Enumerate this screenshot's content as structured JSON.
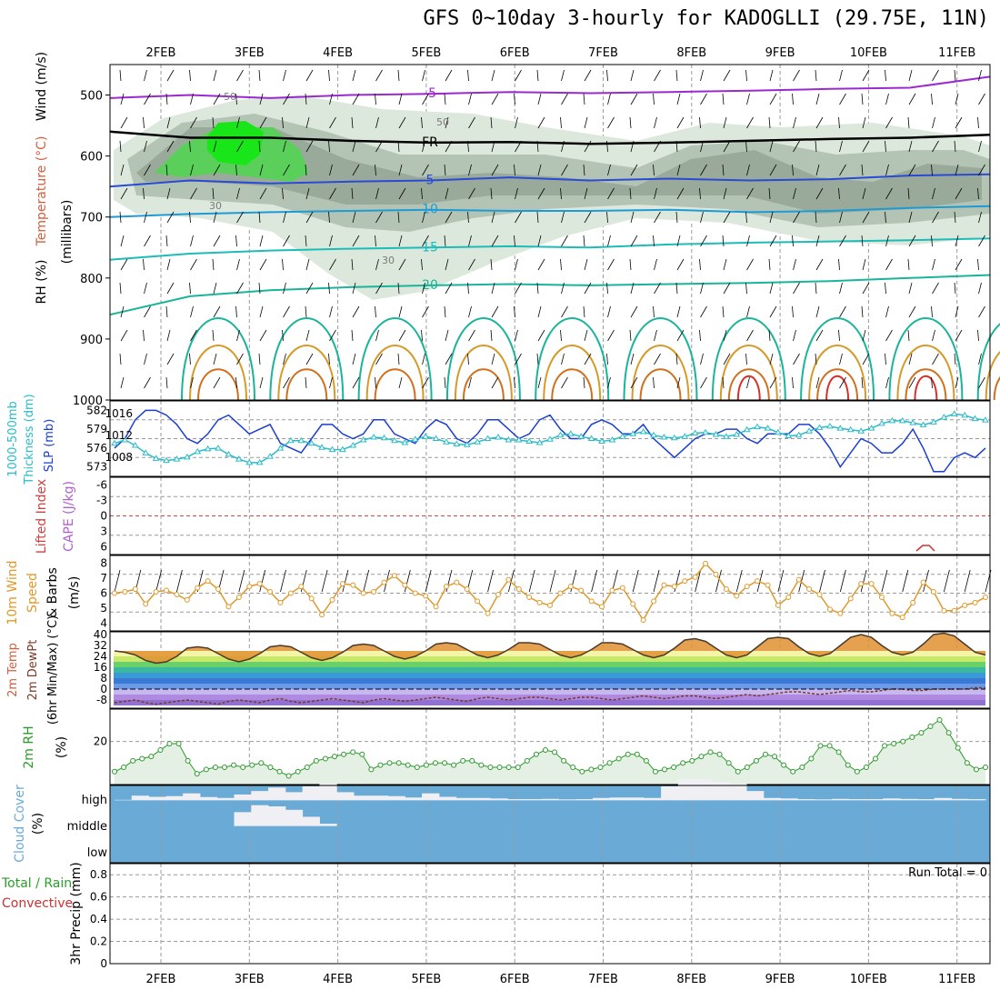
{
  "title": "GFS 0~10day 3-hourly for KADOGLLI (29.75E, 11N)",
  "dates": [
    "2FEB",
    "3FEB",
    "4FEB",
    "5FEB",
    "6FEB",
    "7FEB",
    "8FEB",
    "9FEB",
    "10FEB",
    "11FEB"
  ],
  "run_total": "Run Total = 0",
  "colors": {
    "rh_light": "#dde8dd",
    "rh_mid": "#b4c4b4",
    "rh_dark": "#9aaa9a",
    "rh_green": "#5ad05a",
    "rh_bright": "#19e619",
    "temp_minus5": "#9a2ad0",
    "temp_fr": "#000000",
    "temp_5": "#2a4ad6",
    "temp_10": "#1e9ad6",
    "temp_15": "#1cbcb8",
    "temp_20": "#1ab49a",
    "temp_25": "#d69a2a",
    "temp_30": "#d0701e",
    "temp_35": "#d8302a",
    "slp": "#1c3fd0",
    "thickness": "#2abcc8",
    "wind10m": "#e0982a",
    "rh2m": "#2a9a2a",
    "cloud_bg": "#6aaad6",
    "cloud": "#f0f0f4"
  },
  "chart_data": [
    {
      "panel": "upper-air",
      "type": "heatmap",
      "ylabel_parts": [
        "RH (%)",
        "Temperature (°C)",
        "Wind (m/s)"
      ],
      "y_axis_label": "(millibars)",
      "y_ticks": [
        500,
        600,
        700,
        800,
        900,
        1000
      ],
      "ylim": [
        1000,
        450
      ],
      "contour_labels": [
        "-5",
        "FR",
        "5",
        "10",
        "15",
        "20",
        "50",
        "30"
      ],
      "temperature_levels": [
        {
          "label": "-5",
          "pressure_mb": [
            505,
            500,
            505,
            500,
            498,
            495,
            497,
            495,
            493,
            490,
            488,
            470
          ]
        },
        {
          "label": "FR",
          "pressure_mb": [
            560,
            570,
            570,
            575,
            578,
            577,
            580,
            578,
            575,
            572,
            570,
            565
          ]
        },
        {
          "label": "5",
          "pressure_mb": [
            650,
            640,
            645,
            642,
            640,
            635,
            640,
            637,
            640,
            638,
            632,
            630
          ]
        },
        {
          "label": "10",
          "pressure_mb": [
            700,
            695,
            692,
            690,
            688,
            690,
            690,
            688,
            692,
            690,
            685,
            682
          ]
        },
        {
          "label": "15",
          "pressure_mb": [
            770,
            760,
            755,
            752,
            750,
            748,
            750,
            745,
            742,
            740,
            738,
            735
          ]
        },
        {
          "label": "20",
          "pressure_mb": [
            860,
            830,
            820,
            815,
            812,
            810,
            812,
            810,
            808,
            805,
            800,
            795
          ]
        }
      ]
    },
    {
      "panel": "slp-thickness",
      "type": "line",
      "ylabel_parts": [
        "1000-500mb",
        "Thickness (dm)",
        "SLP (mb)"
      ],
      "left_ticks": [
        "582",
        "579",
        "576",
        "573"
      ],
      "right_ticks": [
        "1016",
        "1012",
        "1008"
      ],
      "series": [
        {
          "name": "SLP (mb)",
          "values": [
            1010,
            1012,
            1016,
            1018,
            1018,
            1017,
            1015,
            1012,
            1011,
            1013,
            1016,
            1017,
            1015,
            1013,
            1014,
            1015,
            1011,
            1010,
            1009,
            1012,
            1015,
            1015,
            1013,
            1012,
            1013,
            1016,
            1016,
            1013,
            1012,
            1011,
            1014,
            1016,
            1015,
            1012,
            1011,
            1013,
            1016,
            1016,
            1014,
            1012,
            1013,
            1016,
            1017,
            1014,
            1012,
            1012,
            1015,
            1016,
            1015,
            1013,
            1013,
            1015,
            1012,
            1010,
            1008,
            1010,
            1012,
            1013,
            1013,
            1014,
            1014,
            1012,
            1011,
            1013,
            1013,
            1013,
            1015,
            1015,
            1013,
            1010,
            1006,
            1009,
            1012,
            1011,
            1009,
            1009,
            1011,
            1014,
            1010,
            1005,
            1005,
            1008,
            1009,
            1008,
            1010
          ]
        },
        {
          "name": "Thickness (dm)",
          "values": [
            576.8,
            577.3,
            576.5,
            575.4,
            574.6,
            574.3,
            574.5,
            574.8,
            575.6,
            576.0,
            576.1,
            575.2,
            574.5,
            574.0,
            574.0,
            574.9,
            576.1,
            577.2,
            577.2,
            576.8,
            576.2,
            575.9,
            575.9,
            576.5,
            577.3,
            577.7,
            577.6,
            577.2,
            576.9,
            577.4,
            577.8,
            577.5,
            577.0,
            576.7,
            576.6,
            577.0,
            577.5,
            577.7,
            577.3,
            577.3,
            577.1,
            576.9,
            577.4,
            578.0,
            578.2,
            577.8,
            577.5,
            577.1,
            577.3,
            577.8,
            578.2,
            578.5,
            578.0,
            577.7,
            577.6,
            577.8,
            578.3,
            578.4,
            578.1,
            577.8,
            578.1,
            578.8,
            579.2,
            579.0,
            578.4,
            577.9,
            578.0,
            578.6,
            579.1,
            579.3,
            579.0,
            578.8,
            578.6,
            579.0,
            579.7,
            580.1,
            580.1,
            579.8,
            579.5,
            579.9,
            580.6,
            581.1,
            580.9,
            580.4,
            580.2
          ]
        }
      ]
    },
    {
      "panel": "cape-li",
      "type": "line",
      "ylabel_parts": [
        "Lifted Index",
        "CAPE (J/kg)"
      ],
      "y_ticks": [
        "-6",
        "-3",
        "0",
        "3",
        "6"
      ],
      "series": [
        {
          "name": "CAPE (J/kg)",
          "values": [
            0,
            0,
            0,
            0,
            0,
            0,
            0,
            0,
            0,
            0,
            0,
            0,
            0,
            0,
            0,
            0,
            0,
            0,
            0,
            0,
            0,
            0,
            0,
            0,
            0,
            0,
            0,
            0,
            0,
            0,
            0,
            0,
            0,
            0,
            0,
            0,
            0,
            0,
            0,
            0,
            0,
            0,
            0,
            0,
            0,
            0,
            0,
            0,
            0,
            0,
            0,
            0,
            0,
            0,
            0,
            0,
            0,
            0,
            0,
            0,
            0,
            0,
            0,
            0,
            0,
            0,
            0,
            0,
            0,
            0,
            0,
            0,
            0,
            0,
            0,
            0,
            0,
            0,
            5,
            0,
            0,
            0,
            0,
            0,
            0
          ]
        }
      ]
    },
    {
      "panel": "wind10m",
      "type": "line",
      "ylabel_parts": [
        "10m Wind",
        "Speed",
        "& Barbs",
        "(m/s)"
      ],
      "y_ticks": [
        "8",
        "7",
        "6",
        "5",
        "4"
      ],
      "series": [
        {
          "name": "10m Wind Speed (m/s)",
          "values": [
            5.8,
            5.9,
            6.1,
            5.0,
            5.9,
            6.0,
            5.7,
            5.3,
            6.2,
            6.7,
            6.1,
            4.8,
            5.5,
            6.3,
            6.5,
            5.9,
            5.1,
            5.8,
            6.3,
            5.4,
            4.2,
            5.3,
            6.5,
            6.4,
            5.8,
            5.9,
            6.6,
            7.1,
            6.4,
            5.8,
            5.6,
            4.8,
            6.3,
            6.6,
            6.1,
            5.2,
            4.3,
            5.7,
            6.8,
            6.1,
            5.5,
            5.1,
            4.9,
            5.8,
            6.3,
            6.0,
            5.2,
            4.8,
            6.0,
            6.2,
            5.0,
            3.8,
            5.2,
            6.4,
            6.3,
            6.7,
            7.0,
            8.0,
            7.2,
            6.1,
            5.6,
            6.3,
            6.7,
            6.4,
            4.9,
            5.5,
            6.8,
            6.1,
            5.7,
            4.6,
            4.3,
            5.4,
            6.5,
            6.5,
            5.5,
            4.3,
            4.0,
            5.1,
            6.6,
            5.9,
            4.5,
            4.5,
            4.9,
            5.1,
            5.5
          ]
        }
      ]
    },
    {
      "panel": "temp2m",
      "type": "area",
      "ylabel_parts": [
        "2m Temp",
        "2m DewPt",
        "(6hr Min/Max) (°C)"
      ],
      "y_ticks": [
        "40",
        "32",
        "24",
        "16",
        "8",
        "0",
        "-8"
      ],
      "series": [
        {
          "name": "2m Temp (°C)",
          "values": [
            28,
            27,
            25,
            21,
            19,
            20,
            24,
            30,
            31,
            30,
            26,
            22,
            20,
            22,
            26,
            31,
            32,
            31,
            27,
            23,
            21,
            23,
            27,
            32,
            33,
            32,
            28,
            24,
            22,
            24,
            28,
            33,
            34,
            33,
            29,
            25,
            23,
            25,
            29,
            34,
            34,
            33,
            29,
            25,
            23,
            25,
            29,
            34,
            34,
            33,
            29,
            25,
            23,
            25,
            30,
            36,
            37,
            35,
            30,
            25,
            23,
            25,
            31,
            37,
            38,
            37,
            31,
            26,
            24,
            26,
            32,
            38,
            40,
            38,
            32,
            27,
            25,
            27,
            33,
            40,
            41,
            39,
            33,
            27,
            25
          ]
        },
        {
          "name": "2m DewPt (°C)",
          "values": [
            -10,
            -9,
            -8,
            -10,
            -11,
            -10,
            -9,
            -8,
            -9,
            -10,
            -11,
            -9,
            -8,
            -9,
            -10,
            -8,
            -7,
            -9,
            -10,
            -9,
            -8,
            -7,
            -8,
            -9,
            -10,
            -8,
            -7,
            -8,
            -9,
            -8,
            -7,
            -6,
            -7,
            -8,
            -9,
            -7,
            -6,
            -7,
            -8,
            -7,
            -6,
            -6,
            -7,
            -8,
            -7,
            -6,
            -6,
            -7,
            -8,
            -7,
            -6,
            -5,
            -6,
            -7,
            -6,
            -5,
            -5,
            -6,
            -7,
            -6,
            -5,
            -4,
            -5,
            -4,
            -3,
            -2,
            -2,
            -3,
            -4,
            -3,
            -2,
            -1,
            -2,
            -2,
            -1,
            0,
            0,
            -1,
            -1,
            0,
            0,
            0,
            0,
            1,
            1
          ]
        }
      ]
    },
    {
      "panel": "rh2m",
      "type": "area",
      "ylabel_parts": [
        "2m RH",
        "(%)"
      ],
      "y_ticks": [
        "20"
      ],
      "series": [
        {
          "name": "2m RH (%)",
          "values": [
            6,
            8,
            11,
            12,
            13,
            16,
            19,
            19,
            11,
            5,
            7,
            8,
            8,
            9,
            8,
            9,
            10,
            8,
            6,
            4,
            6,
            8,
            11,
            12,
            13,
            14,
            15,
            14,
            7,
            9,
            10,
            10,
            9,
            8,
            9,
            10,
            10,
            9,
            11,
            11,
            9,
            8,
            8,
            8,
            8,
            11,
            14,
            16,
            15,
            11,
            8,
            6,
            7,
            8,
            10,
            12,
            14,
            14,
            11,
            6,
            7,
            8,
            10,
            11,
            13,
            15,
            14,
            10,
            6,
            8,
            11,
            14,
            13,
            9,
            6,
            8,
            12,
            18,
            18,
            15,
            9,
            6,
            8,
            12,
            18,
            19,
            20,
            22,
            24,
            27,
            30,
            24,
            17,
            10,
            7,
            8
          ]
        }
      ]
    },
    {
      "panel": "cloud",
      "type": "heatmap",
      "ylabel_parts": [
        "Cloud Cover",
        "(%)"
      ],
      "y_ticks": [
        "high",
        "middle",
        "low"
      ],
      "series": [
        {
          "name": "high",
          "values": [
            2,
            20,
            15,
            18,
            30,
            14,
            10,
            25,
            40,
            55,
            35,
            60,
            72,
            35,
            20,
            20,
            18,
            12,
            30,
            15,
            10,
            10,
            8,
            5,
            5,
            6,
            4,
            5,
            10,
            12,
            12,
            10,
            60,
            90,
            90,
            80,
            70,
            40,
            10,
            8,
            5,
            4,
            6,
            5,
            5,
            8,
            6,
            5,
            10,
            6,
            5
          ]
        },
        {
          "name": "middle",
          "values": [
            0,
            0,
            0,
            0,
            0,
            0,
            0,
            60,
            90,
            85,
            70,
            40,
            10,
            0,
            0,
            0,
            0,
            0,
            0,
            0,
            0,
            0,
            0,
            0,
            0,
            0,
            0,
            0,
            0,
            0,
            0,
            0,
            0,
            0,
            0,
            0,
            0,
            0,
            0,
            0,
            0,
            0,
            0,
            0,
            0,
            0,
            0,
            0,
            0,
            0,
            0
          ]
        }
      ]
    },
    {
      "panel": "precip",
      "type": "bar",
      "ylabel_parts": [
        "Total / Rain",
        "Convective",
        "3hr Precip (mm)"
      ],
      "y_ticks": [
        "0.8",
        "0.6",
        "0.4",
        "0.2",
        "0"
      ],
      "ylim": [
        0,
        0.9
      ],
      "values": [
        0,
        0,
        0,
        0,
        0,
        0,
        0,
        0,
        0,
        0,
        0,
        0,
        0,
        0,
        0,
        0,
        0,
        0,
        0,
        0
      ]
    }
  ]
}
